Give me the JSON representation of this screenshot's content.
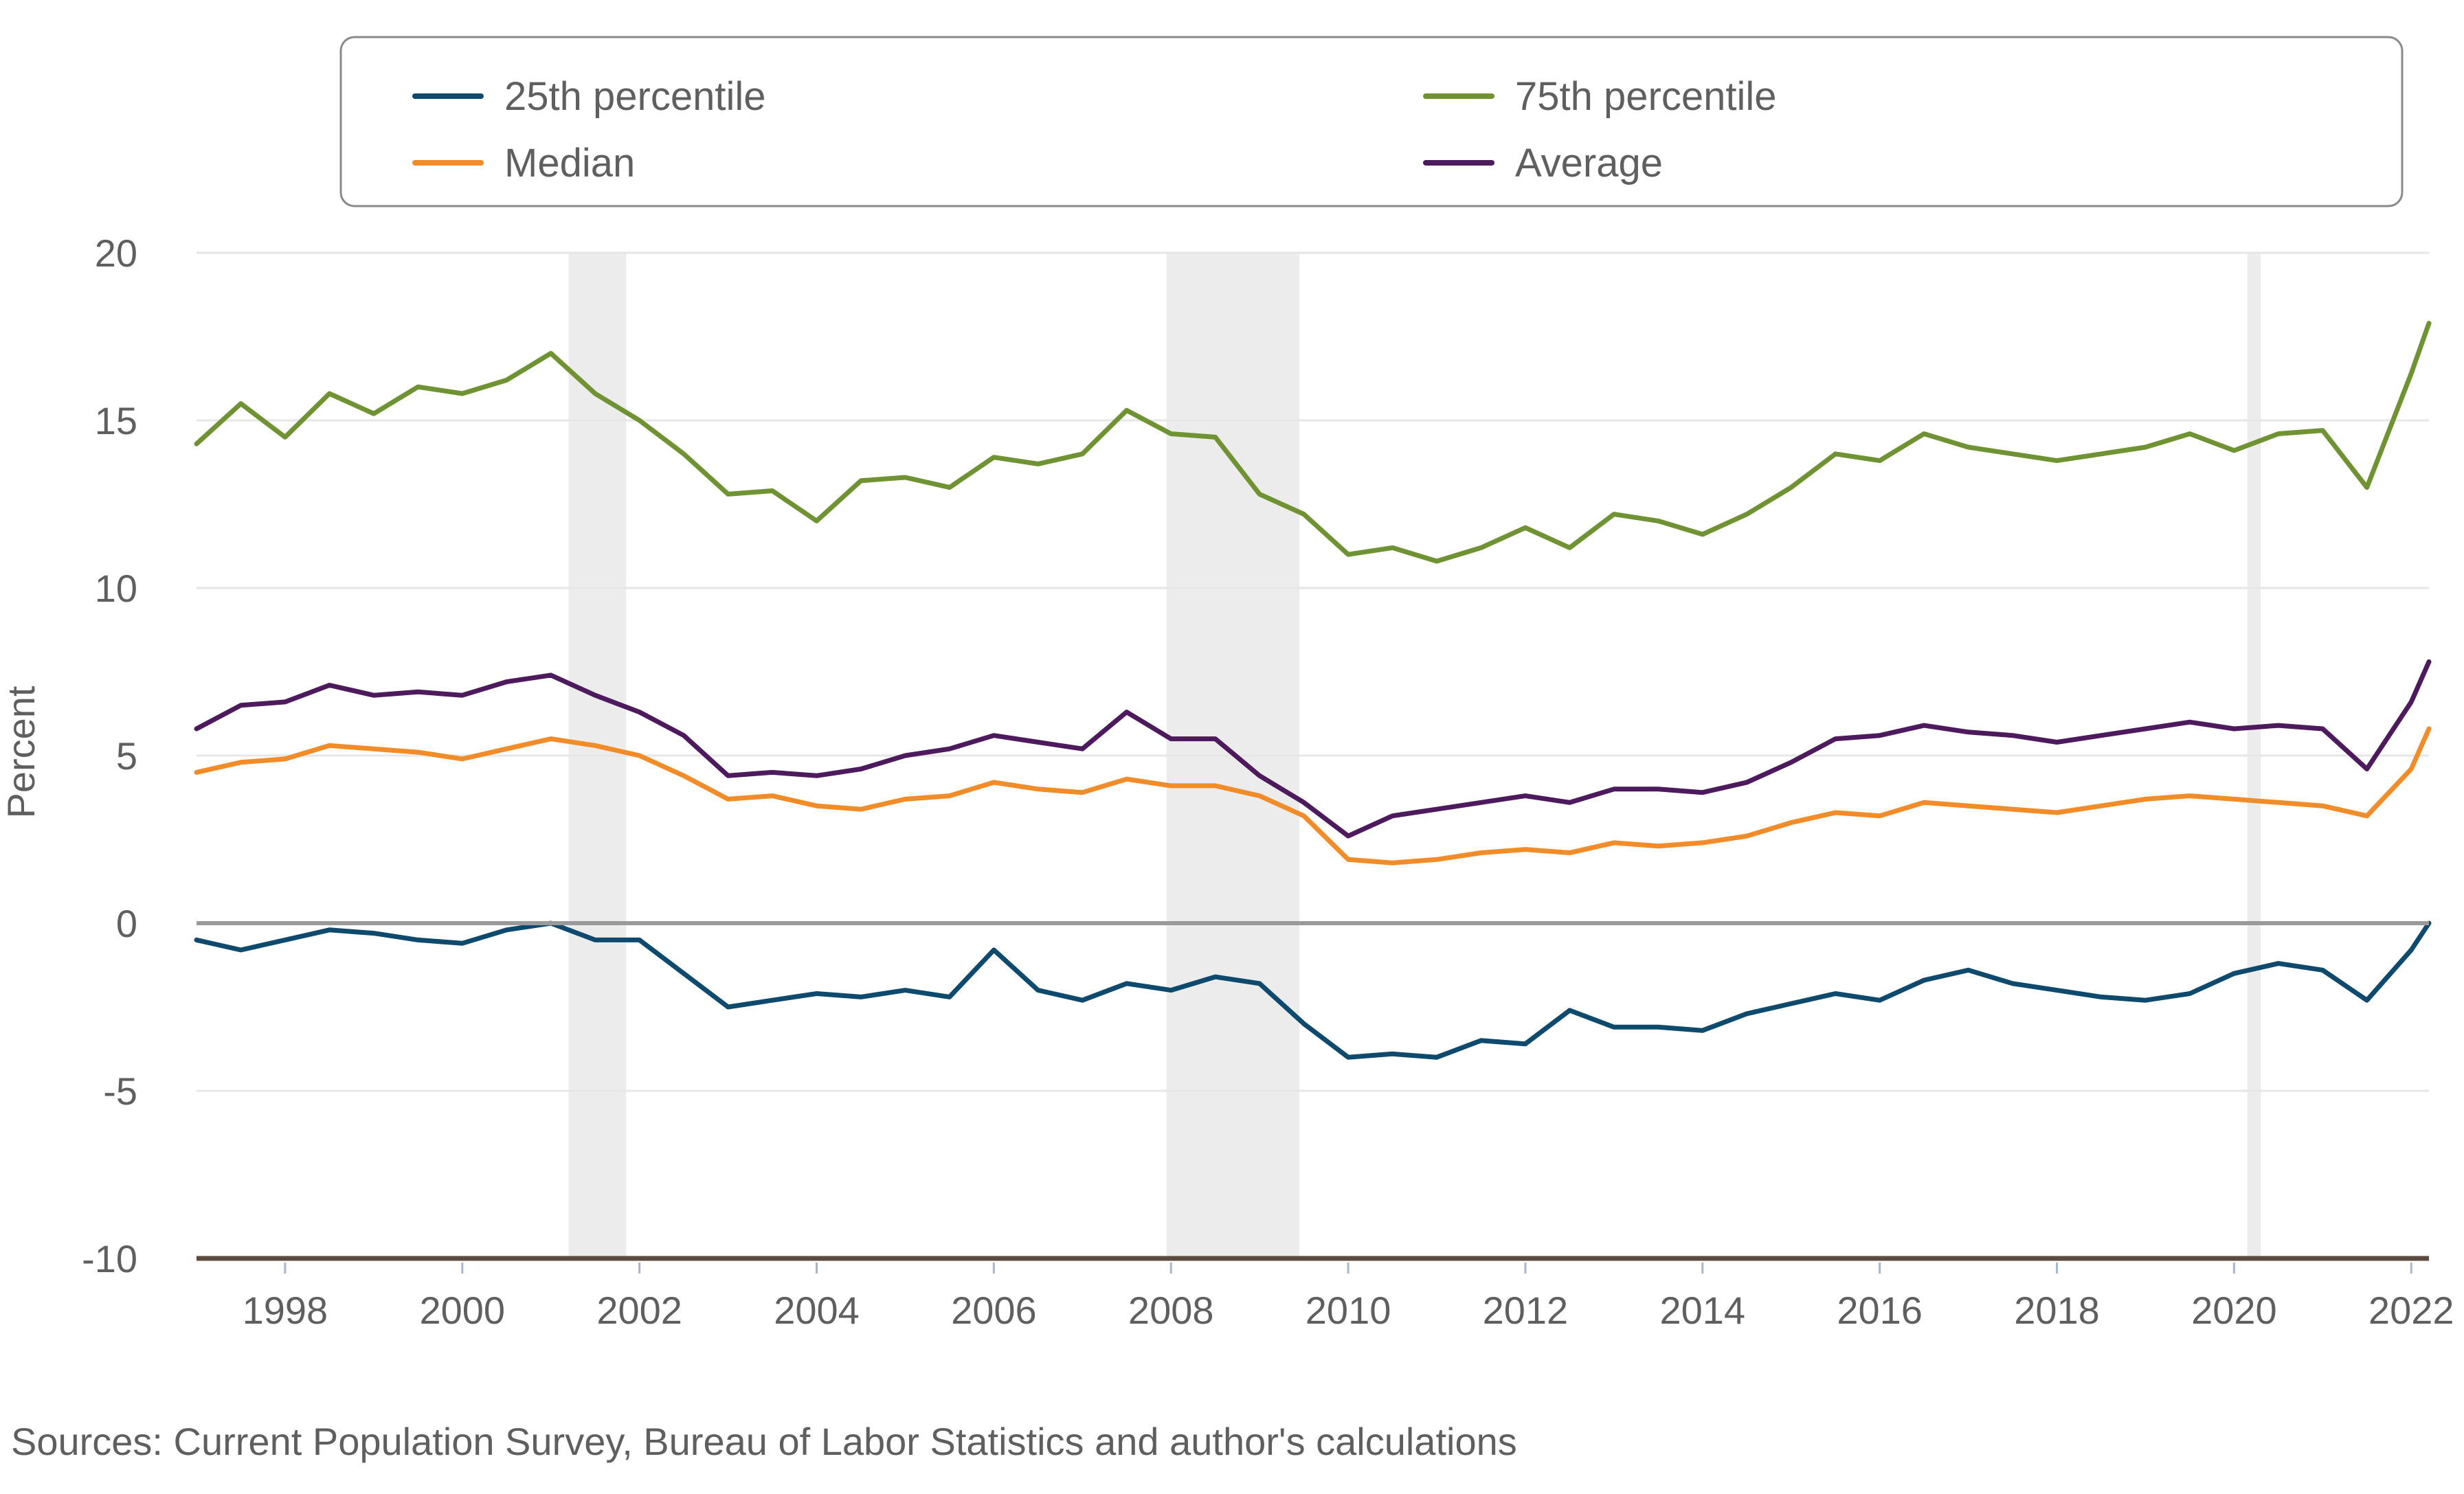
{
  "chart_data": {
    "type": "line",
    "ylabel": "Percent",
    "xlabel": "",
    "ylim": [
      -10,
      20
    ],
    "xlim": [
      1997.0,
      2022.2
    ],
    "yticks": [
      "20",
      "15",
      "10",
      "5",
      "0",
      "-5",
      "-10"
    ],
    "ytick_values": [
      20,
      15,
      10,
      5,
      0,
      -5,
      -10
    ],
    "xticks": [
      "1998",
      "2000",
      "2002",
      "2004",
      "2006",
      "2008",
      "2010",
      "2012",
      "2014",
      "2016",
      "2018",
      "2020",
      "2022"
    ],
    "xtick_values": [
      1998,
      2000,
      2002,
      2004,
      2006,
      2008,
      2010,
      2012,
      2014,
      2016,
      2018,
      2020,
      2022
    ],
    "grid": true,
    "legend_position": "top",
    "recession_shading": [
      [
        2001.2,
        2001.85
      ],
      [
        2007.95,
        2009.45
      ],
      [
        2020.15,
        2020.3
      ]
    ],
    "x": [
      1997.0,
      1997.5,
      1998.0,
      1998.5,
      1999.0,
      1999.5,
      2000.0,
      2000.5,
      2001.0,
      2001.5,
      2002.0,
      2002.5,
      2003.0,
      2003.5,
      2004.0,
      2004.5,
      2005.0,
      2005.5,
      2006.0,
      2006.5,
      2007.0,
      2007.5,
      2008.0,
      2008.5,
      2009.0,
      2009.5,
      2010.0,
      2010.5,
      2011.0,
      2011.5,
      2012.0,
      2012.5,
      2013.0,
      2013.5,
      2014.0,
      2014.5,
      2015.0,
      2015.5,
      2016.0,
      2016.5,
      2017.0,
      2017.5,
      2018.0,
      2018.5,
      2019.0,
      2019.5,
      2020.0,
      2020.5,
      2021.0,
      2021.5,
      2022.0,
      2022.2
    ],
    "series": [
      {
        "name": "25th percentile",
        "color": "#0e4a6e",
        "values": [
          -0.5,
          -0.8,
          -0.5,
          -0.2,
          -0.3,
          -0.5,
          -0.6,
          -0.2,
          0,
          -0.5,
          -0.5,
          -1.5,
          -2.5,
          -2.3,
          -2.1,
          -2.2,
          -2.0,
          -2.2,
          -0.8,
          -2.0,
          -2.3,
          -1.8,
          -2.0,
          -1.6,
          -1.8,
          -3.0,
          -4.0,
          -3.9,
          -4.0,
          -3.5,
          -3.6,
          -2.6,
          -3.1,
          -3.1,
          -3.2,
          -2.7,
          -2.4,
          -2.1,
          -2.3,
          -1.7,
          -1.4,
          -1.8,
          -2.0,
          -2.2,
          -2.3,
          -2.1,
          -1.5,
          -1.2,
          -1.4,
          -2.3,
          -0.8,
          0
        ]
      },
      {
        "name": "75th percentile",
        "color": "#6f9232",
        "values": [
          14.3,
          15.5,
          14.5,
          15.8,
          15.2,
          16.0,
          15.8,
          16.2,
          17.0,
          15.8,
          15.0,
          14.0,
          12.8,
          12.9,
          12.0,
          13.2,
          13.3,
          13.0,
          13.9,
          13.7,
          14.0,
          15.3,
          14.6,
          14.5,
          12.8,
          12.2,
          11.0,
          11.2,
          10.8,
          11.2,
          11.8,
          11.2,
          12.2,
          12.0,
          11.6,
          12.2,
          13.0,
          14.0,
          13.8,
          14.6,
          14.2,
          14.0,
          13.8,
          14.0,
          14.2,
          14.6,
          14.1,
          14.6,
          14.7,
          13.0,
          16.4,
          17.9
        ]
      },
      {
        "name": "Median",
        "color": "#f28c28",
        "values": [
          4.5,
          4.8,
          4.9,
          5.3,
          5.2,
          5.1,
          4.9,
          5.2,
          5.5,
          5.3,
          5.0,
          4.4,
          3.7,
          3.8,
          3.5,
          3.4,
          3.7,
          3.8,
          4.2,
          4.0,
          3.9,
          4.3,
          4.1,
          4.1,
          3.8,
          3.2,
          1.9,
          1.8,
          1.9,
          2.1,
          2.2,
          2.1,
          2.4,
          2.3,
          2.4,
          2.6,
          3.0,
          3.3,
          3.2,
          3.6,
          3.5,
          3.4,
          3.3,
          3.5,
          3.7,
          3.8,
          3.7,
          3.6,
          3.5,
          3.2,
          4.6,
          5.8
        ]
      },
      {
        "name": "Average",
        "color": "#4e1a5e",
        "values": [
          5.8,
          6.5,
          6.6,
          7.1,
          6.8,
          6.9,
          6.8,
          7.2,
          7.4,
          6.8,
          6.3,
          5.6,
          4.4,
          4.5,
          4.4,
          4.6,
          5.0,
          5.2,
          5.6,
          5.4,
          5.2,
          6.3,
          5.5,
          5.5,
          4.4,
          3.6,
          2.6,
          3.2,
          3.4,
          3.6,
          3.8,
          3.6,
          4.0,
          4.0,
          3.9,
          4.2,
          4.8,
          5.5,
          5.6,
          5.9,
          5.7,
          5.6,
          5.4,
          5.6,
          5.8,
          6.0,
          5.8,
          5.9,
          5.8,
          4.6,
          6.6,
          7.8
        ]
      }
    ],
    "annotation": "Sources: Current Population Survey, Bureau of Labor Statistics and author's calculations"
  },
  "colors": {
    "grid": "#e6e6e6",
    "zero_line": "#9a9a9a",
    "bottom_axis": "#5b4a3f",
    "recession": "#ececec",
    "legend_border": "#8a8a8a",
    "text": "#5f5f5f"
  }
}
